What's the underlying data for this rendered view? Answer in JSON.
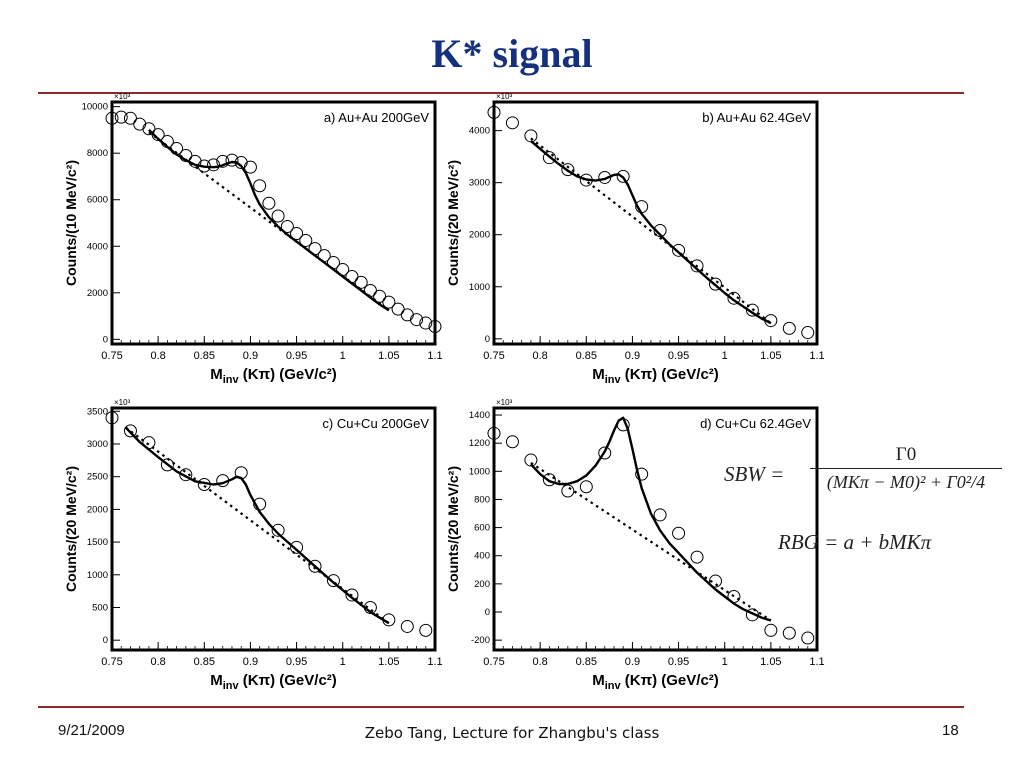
{
  "slide": {
    "title": "K* signal",
    "footer_date": "9/21/2009",
    "footer_center": "Zebo Tang, Lecture for Zhangbu's class",
    "page_number": "18"
  },
  "formulas": {
    "sbw_lhs": "SBW =",
    "sbw_numerator": "Γ0",
    "sbw_denominator": "(MKπ − M0)² + Γ0²/4",
    "rbg": "RBG = a + bMKπ"
  },
  "colors": {
    "title": "#15317e",
    "rule": "#8b2a2a",
    "fit_line": "#000000",
    "background_line": "#000000",
    "marker": "#000000"
  },
  "chart_data": [
    {
      "type": "scatter",
      "label": "a) Au+Au 200GeV",
      "xlabel": "Minv (Kπ) (GeV/c²)",
      "ylabel": "Counts/(10 MeV/c²)",
      "exponent_label": "×10³",
      "xlim": [
        0.75,
        1.1
      ],
      "ylim": [
        -200,
        10200
      ],
      "xticks": [
        0.75,
        0.8,
        0.85,
        0.9,
        0.95,
        1.0,
        1.05,
        1.1
      ],
      "xtick_labels": [
        "0.75",
        "0.8",
        "0.85",
        "0.9",
        "0.95",
        "1",
        "1.05",
        "1.1"
      ],
      "yticks": [
        0,
        2000,
        4000,
        6000,
        8000,
        10000
      ],
      "ytick_labels": [
        "0",
        "2000",
        "4000",
        "6000",
        "8000",
        "10000"
      ],
      "x": [
        0.75,
        0.76,
        0.77,
        0.78,
        0.79,
        0.8,
        0.81,
        0.82,
        0.83,
        0.84,
        0.85,
        0.86,
        0.87,
        0.88,
        0.89,
        0.9,
        0.91,
        0.92,
        0.93,
        0.94,
        0.95,
        0.96,
        0.97,
        0.98,
        0.99,
        1.0,
        1.01,
        1.02,
        1.03,
        1.04,
        1.05,
        1.06,
        1.07,
        1.08,
        1.09,
        1.1
      ],
      "y": [
        9500,
        9550,
        9500,
        9250,
        9050,
        8800,
        8500,
        8200,
        7900,
        7650,
        7450,
        7500,
        7650,
        7700,
        7600,
        7400,
        6600,
        5850,
        5300,
        4850,
        4550,
        4250,
        3900,
        3600,
        3300,
        3000,
        2700,
        2450,
        2100,
        1850,
        1600,
        1300,
        1050,
        850,
        700,
        550
      ],
      "fit": {
        "x": [
          0.79,
          0.8,
          0.81,
          0.82,
          0.83,
          0.84,
          0.85,
          0.86,
          0.865,
          0.87,
          0.875,
          0.88,
          0.885,
          0.89,
          0.895,
          0.9,
          0.905,
          0.91,
          0.92,
          0.93,
          0.94,
          0.95,
          0.96,
          0.97,
          0.98,
          0.99,
          1.0,
          1.01,
          1.02,
          1.03,
          1.04,
          1.05
        ],
        "y": [
          9000,
          8620,
          8270,
          7950,
          7700,
          7500,
          7420,
          7400,
          7420,
          7480,
          7560,
          7620,
          7600,
          7450,
          7150,
          6700,
          6200,
          5800,
          5250,
          4850,
          4500,
          4200,
          3900,
          3600,
          3300,
          3000,
          2700,
          2400,
          2100,
          1800,
          1500,
          1250
        ]
      },
      "background": {
        "x": [
          0.79,
          1.05
        ],
        "y": [
          8900,
          1250
        ]
      }
    },
    {
      "type": "scatter",
      "label": "b) Au+Au 62.4GeV",
      "xlabel": "Minv (Kπ) (GeV/c²)",
      "ylabel": "Counts/(20 MeV/c²)",
      "exponent_label": "×10³",
      "xlim": [
        0.75,
        1.1
      ],
      "ylim": [
        -100,
        4550
      ],
      "xticks": [
        0.75,
        0.8,
        0.85,
        0.9,
        0.95,
        1.0,
        1.05,
        1.1
      ],
      "xtick_labels": [
        "0.75",
        "0.8",
        "0.85",
        "0.9",
        "0.95",
        "1",
        "1.05",
        "1.1"
      ],
      "yticks": [
        0,
        1000,
        2000,
        3000,
        4000
      ],
      "ytick_labels": [
        "0",
        "1000",
        "2000",
        "3000",
        "4000"
      ],
      "x": [
        0.75,
        0.77,
        0.79,
        0.81,
        0.83,
        0.85,
        0.87,
        0.89,
        0.91,
        0.93,
        0.95,
        0.97,
        0.99,
        1.01,
        1.03,
        1.05,
        1.07,
        1.09
      ],
      "y": [
        4350,
        4150,
        3900,
        3480,
        3250,
        3050,
        3100,
        3120,
        2540,
        2080,
        1700,
        1400,
        1050,
        780,
        550,
        350,
        200,
        120
      ],
      "fit": {
        "x": [
          0.79,
          0.8,
          0.81,
          0.82,
          0.83,
          0.84,
          0.85,
          0.86,
          0.87,
          0.875,
          0.88,
          0.885,
          0.89,
          0.895,
          0.9,
          0.905,
          0.91,
          0.92,
          0.93,
          0.94,
          0.95,
          0.96,
          0.97,
          0.98,
          0.99,
          1.0,
          1.01,
          1.02,
          1.03,
          1.04,
          1.05
        ],
        "y": [
          3800,
          3650,
          3500,
          3360,
          3230,
          3120,
          3060,
          3040,
          3070,
          3110,
          3150,
          3160,
          3100,
          2960,
          2760,
          2560,
          2400,
          2180,
          2000,
          1820,
          1660,
          1500,
          1340,
          1180,
          1030,
          880,
          740,
          620,
          500,
          390,
          300
        ]
      },
      "background": {
        "x": [
          0.79,
          1.05
        ],
        "y": [
          3850,
          300
        ]
      }
    },
    {
      "type": "scatter",
      "label": "c) Cu+Cu 200GeV",
      "xlabel": "Minv (Kπ) (GeV/c²)",
      "ylabel": "Counts/(20 MeV/c²)",
      "exponent_label": "×10³",
      "xlim": [
        0.75,
        1.1
      ],
      "ylim": [
        -150,
        3550
      ],
      "xticks": [
        0.75,
        0.8,
        0.85,
        0.9,
        0.95,
        1.0,
        1.05,
        1.1
      ],
      "xtick_labels": [
        "0.75",
        "0.8",
        "0.85",
        "0.9",
        "0.95",
        "1",
        "1.05",
        "1.1"
      ],
      "yticks": [
        0,
        500,
        1000,
        1500,
        2000,
        2500,
        3000,
        3500
      ],
      "ytick_labels": [
        "0",
        "500",
        "1000",
        "1500",
        "2000",
        "2500",
        "3000",
        "3500"
      ],
      "x": [
        0.75,
        0.77,
        0.79,
        0.81,
        0.83,
        0.85,
        0.87,
        0.89,
        0.91,
        0.93,
        0.95,
        0.97,
        0.99,
        1.01,
        1.03,
        1.05,
        1.07,
        1.09
      ],
      "y": [
        3400,
        3200,
        3020,
        2680,
        2530,
        2380,
        2440,
        2560,
        2080,
        1680,
        1420,
        1130,
        910,
        690,
        500,
        310,
        210,
        150
      ],
      "fit": {
        "x": [
          0.765,
          0.78,
          0.8,
          0.82,
          0.84,
          0.86,
          0.87,
          0.88,
          0.885,
          0.89,
          0.895,
          0.9,
          0.91,
          0.92,
          0.93,
          0.95,
          0.97,
          0.99,
          1.01,
          1.03,
          1.05
        ],
        "y": [
          3250,
          3030,
          2800,
          2580,
          2430,
          2380,
          2400,
          2460,
          2500,
          2480,
          2380,
          2220,
          1960,
          1780,
          1630,
          1380,
          1130,
          880,
          650,
          430,
          260
        ]
      },
      "background": {
        "x": [
          0.765,
          1.05
        ],
        "y": [
          3250,
          260
        ]
      }
    },
    {
      "type": "scatter",
      "label": "d) Cu+Cu 62.4GeV",
      "xlabel": "Minv (Kπ) (GeV/c²)",
      "ylabel": "Counts/(20 MeV/c²)",
      "exponent_label": "×10³",
      "xlim": [
        0.75,
        1.1
      ],
      "ylim": [
        -270,
        1450
      ],
      "xticks": [
        0.75,
        0.8,
        0.85,
        0.9,
        0.95,
        1.0,
        1.05,
        1.1
      ],
      "xtick_labels": [
        "0.75",
        "0.8",
        "0.85",
        "0.9",
        "0.95",
        "1",
        "1.05",
        "1.1"
      ],
      "yticks": [
        -200,
        0,
        200,
        400,
        600,
        800,
        1000,
        1200,
        1400
      ],
      "ytick_labels": [
        "-200",
        "0",
        "200",
        "400",
        "600",
        "800",
        "1000",
        "1200",
        "1400"
      ],
      "x": [
        0.75,
        0.77,
        0.79,
        0.81,
        0.83,
        0.85,
        0.87,
        0.89,
        0.91,
        0.93,
        0.95,
        0.97,
        0.99,
        1.01,
        1.03,
        1.05,
        1.07,
        1.09
      ],
      "y": [
        1270,
        1210,
        1080,
        940,
        860,
        890,
        1130,
        1330,
        980,
        690,
        560,
        390,
        220,
        110,
        -20,
        -130,
        -150,
        -185
      ],
      "fit": {
        "x": [
          0.79,
          0.8,
          0.81,
          0.82,
          0.83,
          0.84,
          0.85,
          0.86,
          0.87,
          0.875,
          0.88,
          0.885,
          0.89,
          0.895,
          0.9,
          0.905,
          0.91,
          0.92,
          0.93,
          0.94,
          0.95,
          0.96,
          0.97,
          0.98,
          0.99,
          1.0,
          1.01,
          1.02,
          1.03,
          1.04,
          1.05
        ],
        "y": [
          1050,
          980,
          930,
          910,
          910,
          930,
          970,
          1040,
          1140,
          1210,
          1290,
          1360,
          1380,
          1300,
          1160,
          1010,
          880,
          700,
          580,
          490,
          420,
          350,
          280,
          220,
          160,
          110,
          60,
          20,
          -10,
          -40,
          -60
        ]
      },
      "background": {
        "x": [
          0.79,
          1.05
        ],
        "y": [
          1060,
          -60
        ]
      }
    }
  ]
}
